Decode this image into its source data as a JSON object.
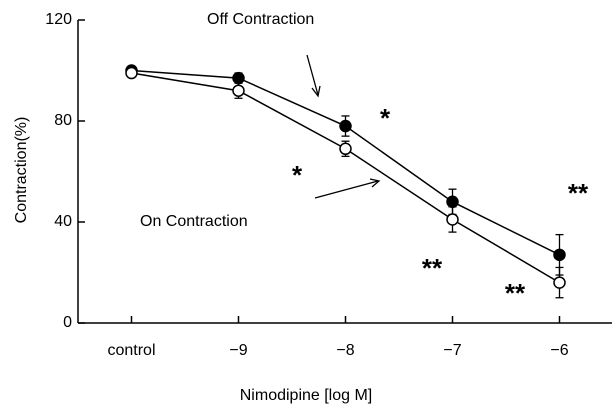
{
  "chart_data": {
    "type": "line",
    "categories": [
      "control",
      "−9",
      "−8",
      "−7",
      "−6"
    ],
    "series": [
      {
        "name": "Off Contraction",
        "color": "#000000",
        "marker": "filled",
        "values": [
          100,
          97,
          78,
          48,
          27
        ],
        "errors": [
          1,
          2,
          4,
          5,
          8
        ]
      },
      {
        "name": "On Contraction",
        "color": "#000000",
        "marker": "open",
        "values": [
          99,
          92,
          69,
          41,
          16
        ],
        "errors": [
          1,
          3,
          3,
          5,
          6
        ]
      }
    ],
    "xlabel": "Nimodipine [log M]",
    "ylabel": "Contraction(%)",
    "ylim": [
      0,
      120
    ],
    "yticks": [
      0,
      40,
      80,
      120
    ],
    "annotations": [
      "*",
      "*",
      "**",
      "**",
      "**"
    ]
  }
}
